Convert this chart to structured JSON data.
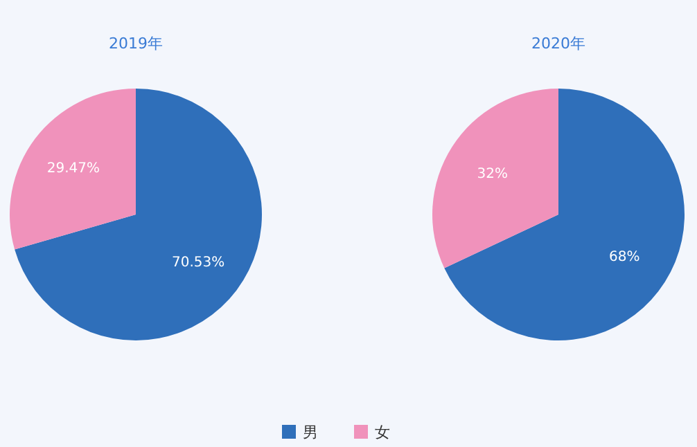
{
  "chart_data": [
    {
      "type": "pie",
      "title": "2019年",
      "categories": [
        "男",
        "女"
      ],
      "values": [
        70.53,
        29.47
      ],
      "value_labels": [
        "70.53%",
        "29.47%"
      ],
      "colors": [
        "#2f6fba",
        "#f092bb"
      ],
      "legend": "bottom"
    },
    {
      "type": "pie",
      "title": "2020年",
      "categories": [
        null,
        null
      ],
      "values": [
        68,
        32
      ],
      "value_labels": [
        "68%",
        "32%"
      ],
      "colors": [
        "#2f6fba",
        "#f092bb"
      ]
    }
  ]
}
